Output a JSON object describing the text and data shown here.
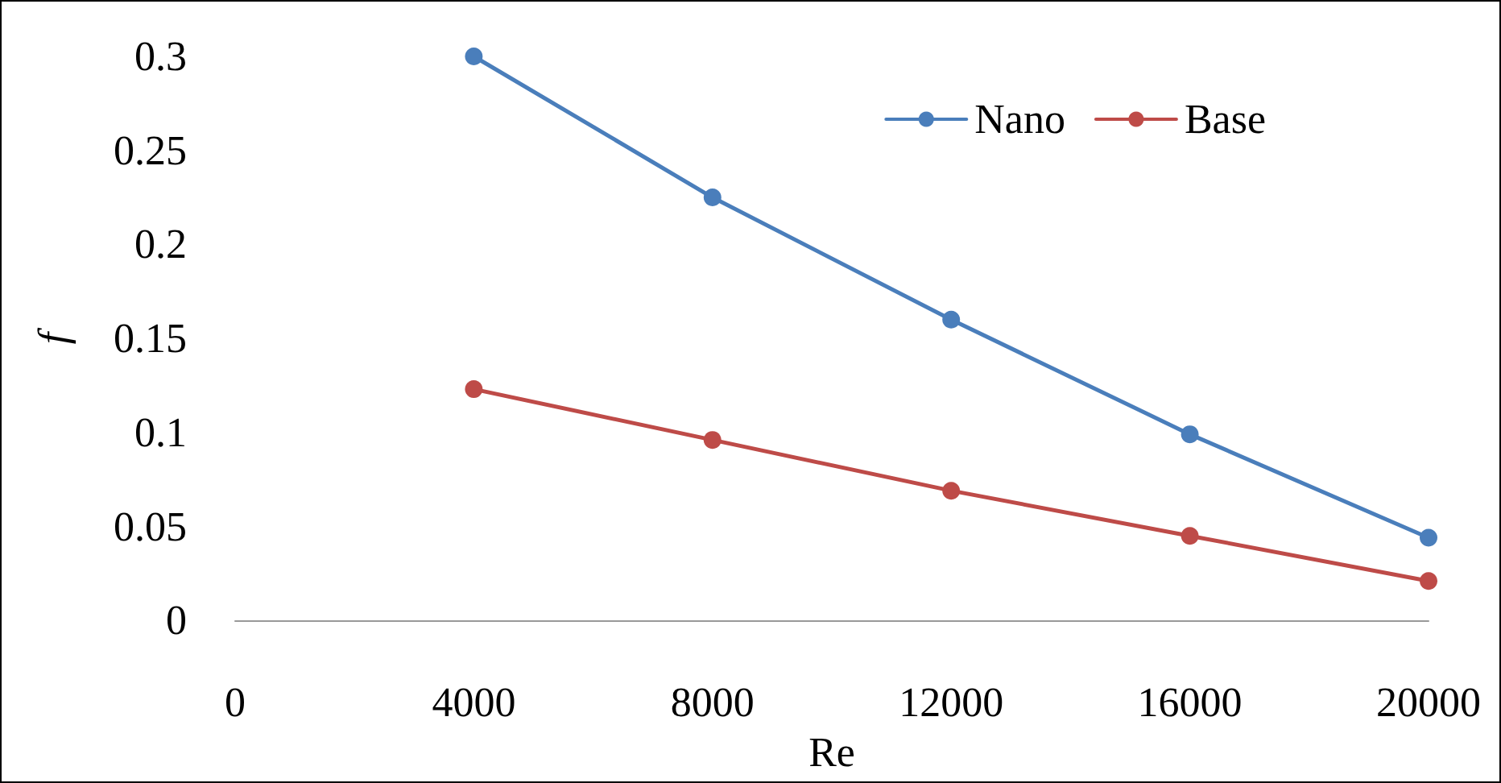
{
  "chart_data": {
    "type": "line",
    "xlabel": "Re",
    "ylabel": "f",
    "x": [
      4000,
      8000,
      12000,
      16000,
      20000
    ],
    "series": [
      {
        "name": "Nano",
        "color": "#4a7ebb",
        "values": [
          0.3,
          0.225,
          0.16,
          0.099,
          0.044
        ]
      },
      {
        "name": "Base",
        "color": "#be4b48",
        "values": [
          0.123,
          0.096,
          0.069,
          0.045,
          0.021
        ]
      }
    ],
    "xlim": [
      0,
      20000
    ],
    "xticks": [
      0,
      4000,
      8000,
      12000,
      16000,
      20000
    ],
    "ylim": [
      0,
      0.3
    ],
    "yticks": [
      0,
      0.05,
      0.1,
      0.15,
      0.2,
      0.25,
      0.3
    ],
    "grid": false,
    "legend": "top right",
    "marker": "circle",
    "line_style": "solid"
  }
}
